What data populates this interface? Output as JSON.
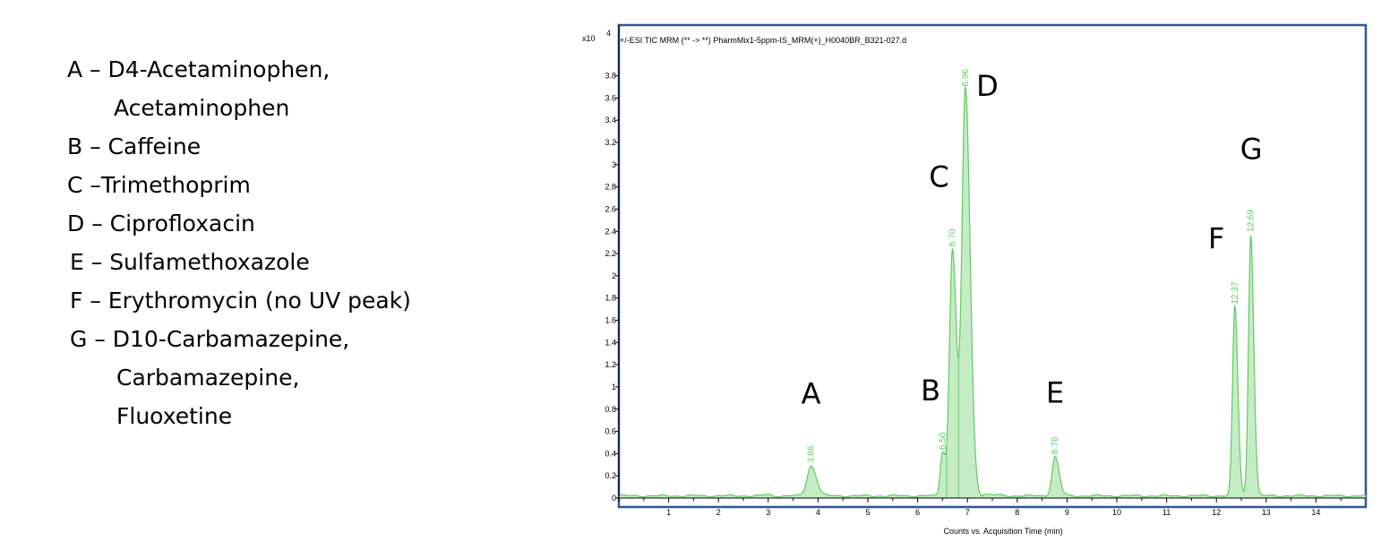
{
  "legend": [
    {
      "text": "A – D4-Acetaminophen,",
      "style": "first"
    },
    {
      "text": "Acetaminophen",
      "style": "cont"
    },
    {
      "text": "B – Caffeine",
      "style": "first"
    },
    {
      "text": "C –Trimethoprim",
      "style": "first"
    },
    {
      "text": "D – Ciprofloxacin",
      "style": "first"
    },
    {
      "text": "E – Sulfamethoxazole",
      "style": "shift"
    },
    {
      "text": "F – Erythromycin (no UV peak)",
      "style": "shift"
    },
    {
      "text": "G – D10-Carbamazepine,",
      "style": "shift"
    },
    {
      "text": "Carbamazepine,",
      "style": "cont2"
    },
    {
      "text": "Fluoxetine",
      "style": "cont2"
    }
  ],
  "chart_data": {
    "type": "line",
    "title": "+/-ESI TIC MRM (** -> **) PharmMix1-5ppm-IS_MRM(+)_H0040BR_B321-027.d",
    "xlabel": "Counts vs. Acquisition Time (min)",
    "ylabel": "",
    "y_multiplier": "x10",
    "y_exponent": "4",
    "xlim": [
      0,
      15
    ],
    "ylim": [
      0,
      3.95
    ],
    "x_ticks": [
      1,
      2,
      3,
      4,
      5,
      6,
      7,
      8,
      9,
      10,
      11,
      12,
      13,
      14
    ],
    "y_ticks": [
      0,
      0.2,
      0.4,
      0.6,
      0.8,
      1,
      1.2,
      1.4,
      1.6,
      1.8,
      2,
      2.2,
      2.4,
      2.6,
      2.8,
      3,
      3.2,
      3.4,
      3.6,
      3.8
    ],
    "y_tick_labels": [
      "0",
      "0.2",
      "0.4",
      "0.6",
      "0.8",
      "1",
      "1.2",
      "1.4",
      "1.6",
      "1.8",
      "2",
      "2.2",
      "2.4",
      "2.6",
      "2.8",
      "3",
      "3.2",
      "3.4",
      "3.6",
      "3.8"
    ],
    "baseline": 0.02,
    "fill": true,
    "line_color": "#62c962",
    "fill_color": "#c6ecc6",
    "frame_color": "#2e5597",
    "peaks": [
      {
        "letter": "A",
        "rt": 3.86,
        "rt_label": "3.86",
        "height": 0.27,
        "width": 0.08
      },
      {
        "letter": "B",
        "rt": 6.5,
        "rt_label": "6.50",
        "height": 0.39,
        "width": 0.045
      },
      {
        "letter": "C",
        "rt": 6.7,
        "rt_label": "6.70",
        "height": 2.22,
        "width": 0.06
      },
      {
        "letter": "D",
        "rt": 6.96,
        "rt_label": "6.96",
        "height": 3.66,
        "width": 0.07
      },
      {
        "letter": "E",
        "rt": 8.76,
        "rt_label": "8.76",
        "height": 0.35,
        "width": 0.06
      },
      {
        "letter": "F",
        "rt": 12.37,
        "rt_label": "12.37",
        "height": 1.7,
        "width": 0.045
      },
      {
        "letter": "G",
        "rt": 12.69,
        "rt_label": "12.69",
        "height": 2.35,
        "width": 0.045
      }
    ]
  }
}
